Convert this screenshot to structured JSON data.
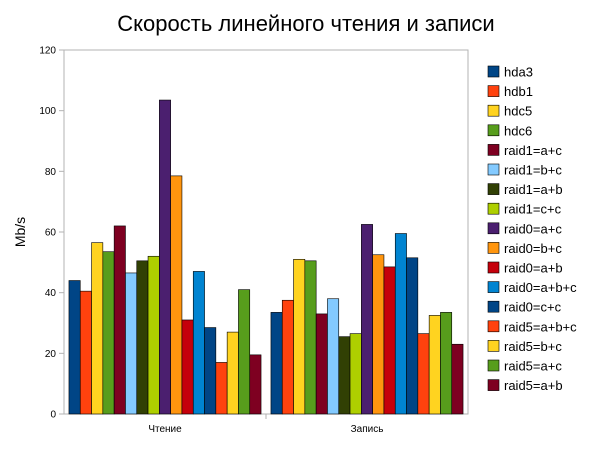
{
  "chart_data": {
    "type": "bar",
    "title": "Скорость линейного чтения и записи",
    "xlabel": "",
    "ylabel": "Mb/s",
    "ylim": [
      0,
      120
    ],
    "yticks": [
      0,
      20,
      40,
      60,
      80,
      100,
      120
    ],
    "grid": false,
    "legend_position": "right",
    "categories": [
      "Чтение",
      "Запись"
    ],
    "series": [
      {
        "name": "hda3",
        "color": "#004586",
        "values": [
          44,
          33.5
        ]
      },
      {
        "name": "hdb1",
        "color": "#ff420e",
        "values": [
          40.5,
          37.5
        ]
      },
      {
        "name": "hdc5",
        "color": "#ffd320",
        "values": [
          56.5,
          51
        ]
      },
      {
        "name": "hdc6",
        "color": "#579d1c",
        "values": [
          53.5,
          50.5
        ]
      },
      {
        "name": "raid1=a+c",
        "color": "#7e0021",
        "values": [
          62,
          33
        ]
      },
      {
        "name": "raid1=b+c",
        "color": "#83caff",
        "values": [
          46.5,
          38
        ]
      },
      {
        "name": "raid1=a+b",
        "color": "#314004",
        "values": [
          50.5,
          25.5
        ]
      },
      {
        "name": "raid1=c+c",
        "color": "#aecf00",
        "values": [
          52,
          26.5
        ]
      },
      {
        "name": "raid0=a+c",
        "color": "#4b1f6f",
        "values": [
          103.5,
          62.5
        ]
      },
      {
        "name": "raid0=b+c",
        "color": "#ff950e",
        "values": [
          78.5,
          52.5
        ]
      },
      {
        "name": "raid0=a+b",
        "color": "#c5000b",
        "values": [
          31,
          48.5
        ]
      },
      {
        "name": "raid0=a+b+c",
        "color": "#0084d1",
        "values": [
          47,
          59.5
        ]
      },
      {
        "name": "raid0=c+c",
        "color": "#004586",
        "values": [
          28.5,
          51.5
        ]
      },
      {
        "name": "raid5=a+b+c",
        "color": "#ff420e",
        "values": [
          17,
          26.5
        ]
      },
      {
        "name": "raid5=b+c",
        "color": "#ffd320",
        "values": [
          27,
          32.5
        ]
      },
      {
        "name": "raid5=a+c",
        "color": "#579d1c",
        "values": [
          41,
          33.5
        ]
      },
      {
        "name": "raid5=a+b",
        "color": "#7e0021",
        "values": [
          19.5,
          23
        ]
      }
    ]
  }
}
